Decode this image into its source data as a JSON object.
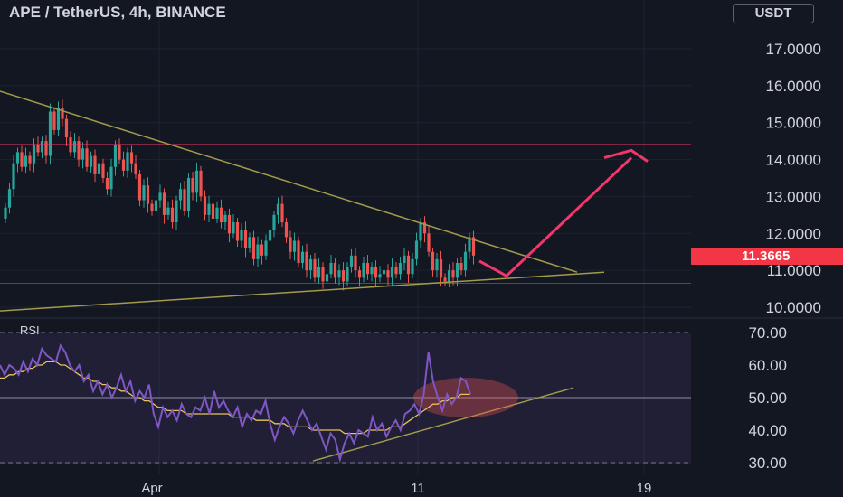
{
  "header": {
    "symbol": "APE",
    "separator": "/",
    "quote": "TetherUS, 4h, BINANCE",
    "currency": "USDT"
  },
  "colors": {
    "background": "#131722",
    "up": "#26a69a",
    "down": "#ef5350",
    "resistance": "#f2366b",
    "trendline": "#a39a4a",
    "rsi": "#7e57c2",
    "rsi_ma": "#e6c35c",
    "arrow": "#f2366b"
  },
  "price_panel": {
    "last_price": "11.3665",
    "resistance_level": 14.4,
    "support_level": 10.65
  },
  "rsi_panel": {
    "label": "RSI",
    "levels": [
      70,
      50,
      30
    ]
  },
  "chart_data": [
    {
      "type": "candlestick",
      "title": "APE / TetherUS, 4h, BINANCE",
      "ylim": [
        9.8,
        18
      ],
      "yticks": [
        "17.0000",
        "16.0000",
        "15.0000",
        "14.0000",
        "13.0000",
        "12.0000",
        "11.0000",
        "10.0000"
      ],
      "ytick_values": [
        17,
        16,
        15,
        14,
        13,
        12,
        11,
        10
      ],
      "xticks": [
        "Apr",
        "11",
        "19"
      ],
      "close": [
        12.7,
        13.2,
        13.9,
        14.2,
        13.8,
        14.1,
        13.9,
        14.4,
        14.2,
        14.5,
        14.1,
        15.3,
        14.8,
        15.4,
        15.1,
        14.6,
        14.2,
        14.5,
        14.0,
        14.3,
        13.8,
        14.1,
        13.6,
        13.9,
        13.5,
        13.2,
        13.8,
        14.4,
        14.0,
        13.7,
        14.2,
        13.9,
        13.6,
        12.9,
        13.3,
        12.8,
        12.6,
        12.9,
        13.1,
        12.5,
        12.7,
        12.3,
        12.9,
        13.2,
        12.6,
        13.5,
        13.1,
        13.7,
        13.0,
        12.5,
        12.8,
        12.4,
        12.7,
        12.3,
        12.5,
        12.0,
        12.3,
        11.8,
        12.1,
        11.6,
        11.9,
        11.3,
        11.7,
        11.4,
        11.8,
        12.1,
        12.5,
        12.8,
        12.3,
        11.9,
        11.5,
        11.8,
        11.2,
        11.5,
        11.0,
        11.3,
        10.8,
        11.1,
        10.7,
        10.9,
        11.2,
        10.8,
        11.0,
        10.7,
        11.1,
        11.4,
        11.0,
        10.8,
        11.2,
        10.9,
        11.1,
        10.8,
        10.9,
        11.0,
        10.8,
        11.1,
        10.9,
        11.2,
        11.4,
        10.9,
        11.3,
        11.8,
        12.3,
        12.0,
        11.5,
        11.0,
        11.3,
        10.8,
        10.7,
        11.0,
        10.8,
        11.2,
        11.0,
        11.5,
        11.9,
        11.4
      ]
    },
    {
      "type": "line",
      "title": "RSI",
      "ylim": [
        28,
        72
      ],
      "yticks": [
        "70.00",
        "60.00",
        "50.00",
        "40.00",
        "30.00"
      ],
      "ytick_values": [
        70,
        60,
        50,
        40,
        30
      ],
      "series": [
        {
          "values": [
            60,
            57,
            60,
            59,
            57,
            61,
            58,
            62,
            60,
            65,
            63,
            62,
            61,
            66,
            64,
            60,
            58,
            60,
            55,
            57,
            52,
            55,
            51,
            54,
            50,
            53,
            57,
            52,
            55,
            49,
            52,
            50,
            54,
            45,
            41,
            47,
            44,
            46,
            43,
            48,
            45,
            44,
            47,
            46,
            50,
            45,
            52,
            47,
            49,
            46,
            44,
            47,
            41,
            45,
            43,
            46,
            45,
            49,
            42,
            37,
            41,
            44,
            42,
            39,
            43,
            46,
            43,
            40,
            42,
            38,
            34,
            39,
            37,
            31,
            36,
            39,
            36,
            40,
            39,
            38,
            44,
            40,
            42,
            38,
            41,
            43,
            40,
            45,
            46,
            48,
            45,
            51,
            64,
            55,
            50,
            46,
            51,
            48,
            50,
            56,
            55,
            51
          ]
        },
        {
          "values": [
            56,
            56,
            57,
            57,
            58,
            58,
            59,
            59,
            60,
            60,
            61,
            61,
            61,
            60,
            60,
            59,
            58,
            57,
            56,
            56,
            55,
            55,
            54,
            54,
            53,
            53,
            52,
            52,
            51,
            50,
            50,
            49,
            49,
            48,
            47,
            47,
            46,
            46,
            46,
            46,
            45,
            45,
            45,
            45,
            45,
            45,
            45,
            45,
            45,
            45,
            44,
            44,
            44,
            44,
            44,
            43,
            43,
            43,
            43,
            42,
            42,
            42,
            41,
            41,
            41,
            41,
            41,
            40,
            40,
            40,
            40,
            40,
            40,
            40,
            39,
            39,
            39,
            39,
            39,
            40,
            40,
            40,
            40,
            40,
            41,
            41,
            41,
            42,
            43,
            44,
            45,
            46,
            47,
            48,
            48,
            49,
            49,
            50,
            50,
            51,
            51,
            51
          ]
        }
      ]
    }
  ]
}
